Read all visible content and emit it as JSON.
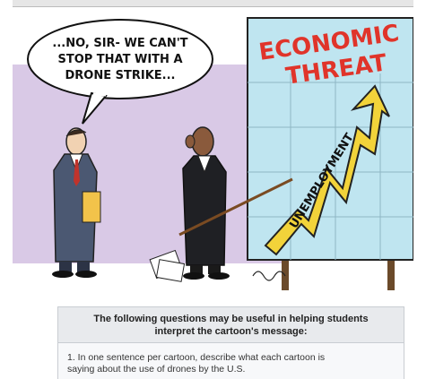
{
  "cartoon": {
    "speech": [
      "...NO, SIR- WE CAN'T",
      "STOP THAT WITH A",
      "DRONE STRIKE..."
    ],
    "chart_title": [
      "ECONOMIC",
      "THREAT"
    ],
    "arrow_label": "UNEMPLOYMENT"
  },
  "caption": {
    "text": "The following questions may be useful in helping students interpret the cartoon's message:"
  },
  "questions": [
    "1. In one sentence per cartoon, describe what each cartoon is",
    "saying about the use of drones by the U.S."
  ]
}
